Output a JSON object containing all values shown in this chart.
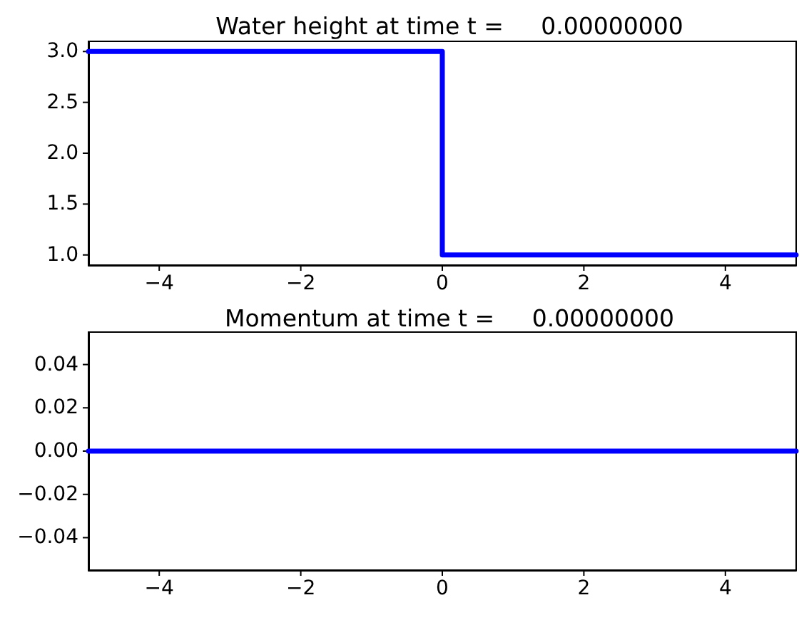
{
  "chart_data": [
    {
      "type": "line",
      "title": "Water height at time t =     0.00000000",
      "x": [
        -5,
        0,
        0,
        5
      ],
      "values": [
        3,
        3,
        1,
        1
      ],
      "color": "#0000ff",
      "marker": "none",
      "line_style": "solid",
      "xlim": [
        -5,
        5
      ],
      "xticks": [
        -4,
        -2,
        0,
        2,
        4
      ],
      "ylim": [
        0.9,
        3.1
      ],
      "yticks": [
        {
          "value": 1,
          "label": "1.0"
        },
        1.5,
        {
          "value": 2,
          "label": "2.0"
        },
        2.5,
        {
          "value": 3,
          "label": "3.0"
        }
      ]
    },
    {
      "type": "line",
      "title": "Momentum at time t =     0.00000000",
      "x": [
        -5,
        5
      ],
      "values": [
        0,
        0
      ],
      "color": "#0000ff",
      "marker": "none",
      "line_style": "solid",
      "xlim": [
        -5,
        5
      ],
      "xticks": [
        -4,
        -2,
        0,
        2,
        4
      ],
      "ylim": [
        -0.055,
        0.055
      ],
      "yticks": [
        {
          "value": -0.04,
          "label": "−0.04"
        },
        {
          "value": -0.02,
          "label": "−0.02"
        },
        {
          "value": 0,
          "label": "0.00"
        },
        0.02,
        0.04
      ]
    }
  ]
}
